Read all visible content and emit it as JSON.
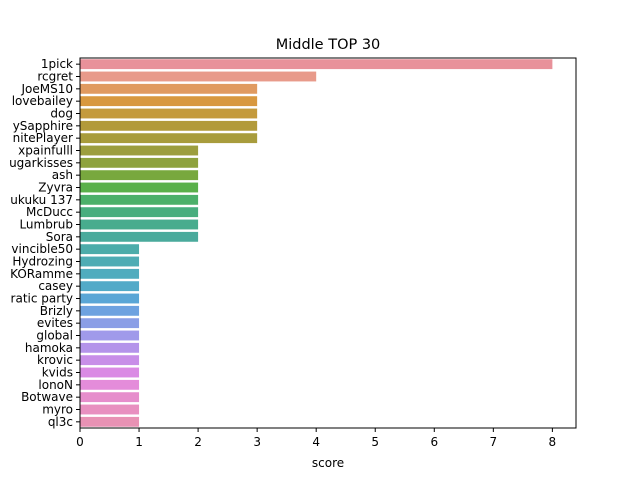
{
  "chart_data": {
    "type": "bar",
    "orientation": "horizontal",
    "title": "Middle TOP 30",
    "xlabel": "score",
    "ylabel": "",
    "xlim": [
      0,
      8.4
    ],
    "xticks": [
      0,
      1,
      2,
      3,
      4,
      5,
      6,
      7,
      8
    ],
    "grid": false,
    "categories": [
      "1pick",
      "rcgret",
      "JoeMS10",
      "lovebailey",
      "dog",
      "ySapphire",
      "nitePlayer",
      "xpainfulll",
      "ugarkisses",
      "ash",
      "Zyvra",
      "ukuku 137",
      "McDucc",
      "Lumbrub",
      "Sora",
      "vincible50",
      "Hydrozing",
      "KORamme",
      "casey",
      "ratic party",
      "Brizly",
      "evites",
      "global",
      "hamoka",
      "krovic",
      "kvids",
      "lonoN",
      "Botwave",
      "myro",
      "ql3c"
    ],
    "values": [
      8,
      4,
      3,
      3,
      3,
      3,
      3,
      2,
      2,
      2,
      2,
      2,
      2,
      2,
      2,
      1,
      1,
      1,
      1,
      1,
      1,
      1,
      1,
      1,
      1,
      1,
      1,
      1,
      1,
      1
    ],
    "colors": [
      "#e8919a",
      "#e89a8a",
      "#e09a60",
      "#d8983f",
      "#c49a3c",
      "#b29a3a",
      "#a89c3c",
      "#9c9e3e",
      "#8ea23e",
      "#78a83e",
      "#5ab04a",
      "#4cb06a",
      "#48ae7e",
      "#48ac8e",
      "#4aaa9c",
      "#4cacaa",
      "#4eacb4",
      "#50acbe",
      "#52aac8",
      "#5aa6d6",
      "#6ea2e0",
      "#8a9ee6",
      "#a09aea",
      "#b494ea",
      "#c88ee8",
      "#da8ae4",
      "#e48cda",
      "#e68ecc",
      "#e890c0",
      "#e892b4"
    ]
  }
}
